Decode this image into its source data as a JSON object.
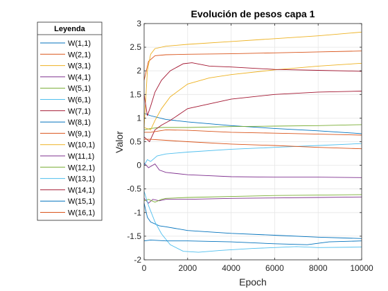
{
  "chart_data": {
    "type": "line",
    "title": "Evolución de pesos capa 1",
    "xlabel": "Epoch",
    "ylabel": "Valor",
    "xlim": [
      0,
      10000
    ],
    "ylim": [
      -2,
      3
    ],
    "xticks": [
      0,
      2000,
      4000,
      6000,
      8000,
      10000
    ],
    "xtick_labels": [
      "0",
      "2000",
      "4000",
      "6000",
      "8000",
      "10000"
    ],
    "yticks": [
      -2,
      -1.5,
      -1,
      -0.5,
      0,
      0.5,
      1,
      1.5,
      2,
      2.5,
      3
    ],
    "ytick_labels": [
      "-2",
      "-1.5",
      "-1",
      "-0.5",
      "0",
      "0.5",
      "1",
      "1.5",
      "2",
      "2.5",
      "3"
    ],
    "grid": true,
    "legend_title": "Leyenda",
    "legend_position": "left-outside",
    "series": [
      {
        "name": "W(1,1)",
        "color": "#0072BD",
        "points": [
          [
            0,
            1.1
          ],
          [
            300,
            1.05
          ],
          [
            1000,
            0.97
          ],
          [
            2000,
            0.92
          ],
          [
            4000,
            0.84
          ],
          [
            6000,
            0.78
          ],
          [
            8000,
            0.73
          ],
          [
            10000,
            0.67
          ]
        ]
      },
      {
        "name": "W(2,1)",
        "color": "#D95319",
        "points": [
          [
            0,
            1.8
          ],
          [
            200,
            2.2
          ],
          [
            500,
            2.32
          ],
          [
            1000,
            2.34
          ],
          [
            2000,
            2.35
          ],
          [
            4000,
            2.36
          ],
          [
            6000,
            2.38
          ],
          [
            8000,
            2.4
          ],
          [
            10000,
            2.42
          ]
        ]
      },
      {
        "name": "W(3,1)",
        "color": "#EDB120",
        "points": [
          [
            0,
            0.8
          ],
          [
            150,
            2.0
          ],
          [
            300,
            2.35
          ],
          [
            500,
            2.47
          ],
          [
            1000,
            2.52
          ],
          [
            2000,
            2.56
          ],
          [
            4000,
            2.62
          ],
          [
            6000,
            2.68
          ],
          [
            8000,
            2.74
          ],
          [
            10000,
            2.82
          ]
        ]
      },
      {
        "name": "W(4,1)",
        "color": "#7E2F8E",
        "points": [
          [
            0,
            0.05
          ],
          [
            200,
            -0.05
          ],
          [
            500,
            0.03
          ],
          [
            700,
            -0.1
          ],
          [
            1000,
            -0.15
          ],
          [
            2000,
            -0.2
          ],
          [
            4000,
            -0.24
          ],
          [
            6000,
            -0.25
          ],
          [
            8000,
            -0.25
          ],
          [
            10000,
            -0.26
          ]
        ]
      },
      {
        "name": "W(5,1)",
        "color": "#77AC30",
        "points": [
          [
            0,
            0.75
          ],
          [
            300,
            0.78
          ],
          [
            700,
            0.8
          ],
          [
            1000,
            0.8
          ],
          [
            2000,
            0.8
          ],
          [
            4000,
            0.82
          ],
          [
            6000,
            0.83
          ],
          [
            8000,
            0.84
          ],
          [
            10000,
            0.86
          ]
        ]
      },
      {
        "name": "W(6,1)",
        "color": "#4DBEEE",
        "points": [
          [
            0,
            0.0
          ],
          [
            150,
            0.12
          ],
          [
            300,
            0.08
          ],
          [
            600,
            0.2
          ],
          [
            1000,
            0.24
          ],
          [
            2000,
            0.28
          ],
          [
            4000,
            0.34
          ],
          [
            6000,
            0.38
          ],
          [
            8000,
            0.42
          ],
          [
            10000,
            0.46
          ]
        ]
      },
      {
        "name": "W(7,1)",
        "color": "#A2142F",
        "points": [
          [
            0,
            0.6
          ],
          [
            250,
            0.5
          ],
          [
            500,
            0.75
          ],
          [
            800,
            0.85
          ],
          [
            1200,
            0.95
          ],
          [
            2000,
            1.2
          ],
          [
            4000,
            1.4
          ],
          [
            6000,
            1.5
          ],
          [
            8000,
            1.55
          ],
          [
            10000,
            1.57
          ]
        ]
      },
      {
        "name": "W(8,1)",
        "color": "#0072BD",
        "points": [
          [
            0,
            -0.8
          ],
          [
            150,
            -1.1
          ],
          [
            300,
            -1.2
          ],
          [
            700,
            -1.28
          ],
          [
            1000,
            -1.3
          ],
          [
            2000,
            -1.38
          ],
          [
            4000,
            -1.44
          ],
          [
            6000,
            -1.48
          ],
          [
            8000,
            -1.52
          ],
          [
            10000,
            -1.55
          ]
        ]
      },
      {
        "name": "W(9,1)",
        "color": "#D95319",
        "points": [
          [
            0,
            0.55
          ],
          [
            300,
            0.55
          ],
          [
            1000,
            0.53
          ],
          [
            2000,
            0.5
          ],
          [
            4000,
            0.45
          ],
          [
            6000,
            0.42
          ],
          [
            8000,
            0.38
          ],
          [
            10000,
            0.35
          ]
        ]
      },
      {
        "name": "W(10,1)",
        "color": "#EDB120",
        "points": [
          [
            0,
            0.8
          ],
          [
            300,
            0.75
          ],
          [
            500,
            0.95
          ],
          [
            800,
            1.2
          ],
          [
            1200,
            1.45
          ],
          [
            2000,
            1.72
          ],
          [
            3000,
            1.85
          ],
          [
            4000,
            1.92
          ],
          [
            6000,
            2.02
          ],
          [
            8000,
            2.1
          ],
          [
            10000,
            2.16
          ]
        ]
      },
      {
        "name": "W(11,1)",
        "color": "#7E2F8E",
        "points": [
          [
            0,
            -0.7
          ],
          [
            200,
            -0.8
          ],
          [
            400,
            -0.72
          ],
          [
            700,
            -0.75
          ],
          [
            1000,
            -0.72
          ],
          [
            2000,
            -0.72
          ],
          [
            4000,
            -0.7
          ],
          [
            6000,
            -0.69
          ],
          [
            8000,
            -0.68
          ],
          [
            10000,
            -0.67
          ]
        ]
      },
      {
        "name": "W(12,1)",
        "color": "#77AC30",
        "points": [
          [
            0,
            -0.75
          ],
          [
            200,
            -0.72
          ],
          [
            500,
            -0.78
          ],
          [
            800,
            -0.72
          ],
          [
            1000,
            -0.7
          ],
          [
            2000,
            -0.68
          ],
          [
            4000,
            -0.66
          ],
          [
            6000,
            -0.64
          ],
          [
            8000,
            -0.63
          ],
          [
            10000,
            -0.62
          ]
        ]
      },
      {
        "name": "W(13,1)",
        "color": "#4DBEEE",
        "points": [
          [
            0,
            -0.55
          ],
          [
            200,
            -0.85
          ],
          [
            500,
            -1.2
          ],
          [
            800,
            -1.45
          ],
          [
            1200,
            -1.68
          ],
          [
            1800,
            -1.82
          ],
          [
            2500,
            -1.84
          ],
          [
            3500,
            -1.8
          ],
          [
            5000,
            -1.76
          ],
          [
            7000,
            -1.72
          ],
          [
            8000,
            -1.74
          ],
          [
            10000,
            -1.73
          ]
        ]
      },
      {
        "name": "W(14,1)",
        "color": "#A2142F",
        "points": [
          [
            0,
            1.5
          ],
          [
            150,
            1.05
          ],
          [
            300,
            1.25
          ],
          [
            500,
            1.55
          ],
          [
            800,
            1.8
          ],
          [
            1200,
            2.0
          ],
          [
            1800,
            2.15
          ],
          [
            2200,
            2.17
          ],
          [
            3000,
            2.1
          ],
          [
            4000,
            2.08
          ],
          [
            6000,
            2.03
          ],
          [
            8000,
            2.01
          ],
          [
            10000,
            1.99
          ]
        ]
      },
      {
        "name": "W(15,1)",
        "color": "#0072BD",
        "points": [
          [
            0,
            -1.6
          ],
          [
            300,
            -1.58
          ],
          [
            1000,
            -1.6
          ],
          [
            2000,
            -1.6
          ],
          [
            4000,
            -1.62
          ],
          [
            6000,
            -1.66
          ],
          [
            7500,
            -1.68
          ],
          [
            8500,
            -1.62
          ],
          [
            10000,
            -1.6
          ]
        ]
      },
      {
        "name": "W(16,1)",
        "color": "#D95319",
        "points": [
          [
            0,
            0.7
          ],
          [
            300,
            0.7
          ],
          [
            1000,
            0.75
          ],
          [
            2000,
            0.74
          ],
          [
            4000,
            0.7
          ],
          [
            6000,
            0.68
          ],
          [
            8000,
            0.66
          ],
          [
            10000,
            0.64
          ]
        ]
      }
    ]
  }
}
